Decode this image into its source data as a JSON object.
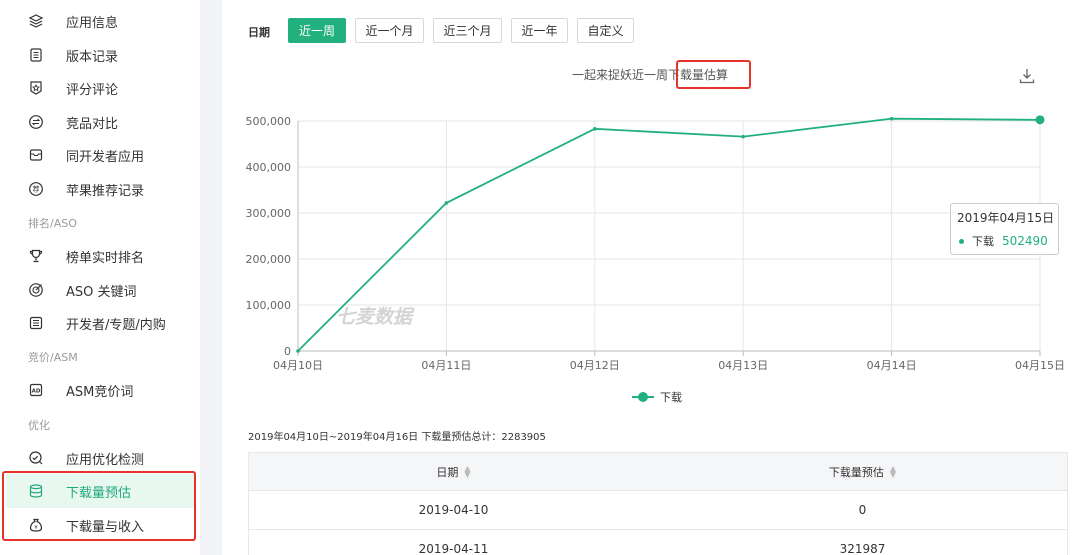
{
  "sidebar": {
    "items": [
      {
        "label": "应用信息",
        "icon": "layers-icon"
      },
      {
        "label": "版本记录",
        "icon": "document-icon"
      },
      {
        "label": "评分评论",
        "icon": "star-shield-icon"
      },
      {
        "label": "竞品对比",
        "icon": "compare-icon"
      },
      {
        "label": "同开发者应用",
        "icon": "inbox-icon"
      },
      {
        "label": "苹果推荐记录",
        "icon": "recommend-icon"
      }
    ],
    "section_rank": "排名/ASO",
    "rank_items": [
      {
        "label": "榜单实时排名",
        "icon": "trophy-icon"
      },
      {
        "label": "ASO 关键词",
        "icon": "target-icon"
      },
      {
        "label": "开发者/专题/内购",
        "icon": "list-icon"
      }
    ],
    "section_asm": "竞价/ASM",
    "asm_items": [
      {
        "label": "ASM竞价词",
        "icon": "ad-icon"
      }
    ],
    "section_opt": "优化",
    "opt_items": [
      {
        "label": "应用优化检测",
        "icon": "check-search-icon"
      },
      {
        "label": "下载量预估",
        "icon": "database-icon",
        "active": true
      },
      {
        "label": "下载量与收入",
        "icon": "money-bag-icon"
      }
    ]
  },
  "filter": {
    "label": "日期",
    "ranges": [
      "近一周",
      "近一个月",
      "近三个月",
      "近一年",
      "自定义"
    ],
    "active_index": 0
  },
  "chart_title": "一起来捉妖近一周下载量估算",
  "watermark": "七麦数据",
  "tooltip": {
    "date": "2019年04月15日",
    "series": "下载",
    "value": "502490"
  },
  "chart_data": {
    "type": "line",
    "categories": [
      "04月10日",
      "04月11日",
      "04月12日",
      "04月13日",
      "04月14日",
      "04月15日"
    ],
    "series": [
      {
        "name": "下载",
        "values": [
          0,
          321987,
          483000,
          466000,
          505000,
          502490
        ]
      }
    ],
    "yticks": [
      "0",
      "100,000",
      "200,000",
      "300,000",
      "400,000",
      "500,000"
    ],
    "ylim": [
      0,
      500000
    ],
    "grid": true,
    "legend": "bottom-center",
    "color": "#21b07e"
  },
  "summary": "2019年04月10日~2019年04月16日 下载量预估总计：2283905",
  "table": {
    "headers": [
      "日期",
      "下载量预估"
    ],
    "rows": [
      [
        "2019-04-10",
        "0"
      ],
      [
        "2019-04-11",
        "321987"
      ]
    ]
  }
}
